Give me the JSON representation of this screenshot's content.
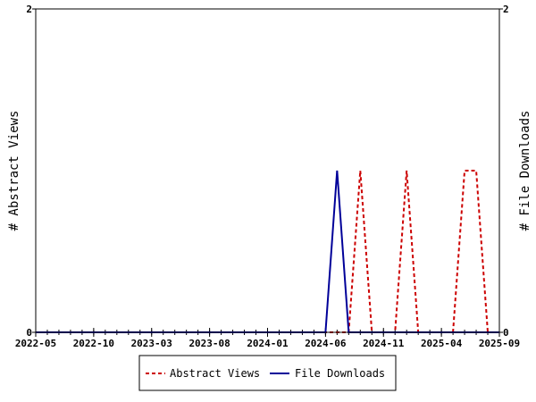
{
  "chart_data": {
    "type": "line",
    "ylabel_left": "# Abstract Views",
    "ylabel_right": "# File Downloads",
    "x_ticks": [
      "2022-05",
      "2022-10",
      "2023-03",
      "2023-08",
      "2024-01",
      "2024-06",
      "2024-11",
      "2025-04",
      "2025-09"
    ],
    "x_range": [
      "2022-05",
      "2025-09"
    ],
    "y_left_range": [
      0,
      2
    ],
    "y_right_range": [
      0,
      2
    ],
    "y_left_ticks": [
      "0",
      "2"
    ],
    "y_right_ticks": [
      "0",
      "2"
    ],
    "legend_position": "bottom",
    "grid": false,
    "series": [
      {
        "name": "Abstract Views",
        "axis": "left",
        "color": "#cc0000",
        "style": "dashed",
        "points": [
          [
            "2022-05",
            0
          ],
          [
            "2024-08",
            0
          ],
          [
            "2024-09",
            1
          ],
          [
            "2024-10",
            0
          ],
          [
            "2024-12",
            0
          ],
          [
            "2025-01",
            1
          ],
          [
            "2025-02",
            0
          ],
          [
            "2025-05",
            0
          ],
          [
            "2025-06",
            1
          ],
          [
            "2025-07",
            1
          ],
          [
            "2025-08",
            0
          ],
          [
            "2025-09",
            0
          ]
        ]
      },
      {
        "name": "File Downloads",
        "axis": "right",
        "color": "#000099",
        "style": "solid",
        "points": [
          [
            "2022-05",
            0
          ],
          [
            "2024-06",
            0
          ],
          [
            "2024-07",
            1
          ],
          [
            "2024-08",
            0
          ],
          [
            "2025-09",
            0
          ]
        ]
      }
    ]
  }
}
